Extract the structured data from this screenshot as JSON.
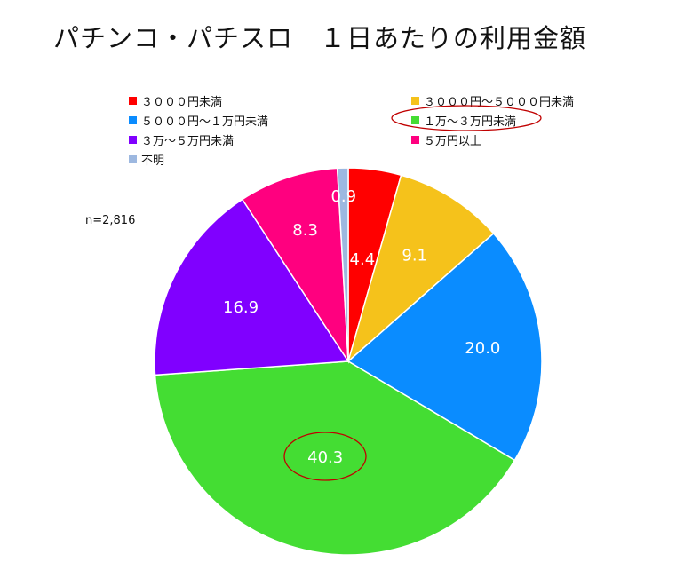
{
  "title": "パチンコ・パチスロ　１日あたりの利用金額",
  "n_note": "n=2,816",
  "chart_data": {
    "type": "pie",
    "title": "パチンコ・パチスロ　１日あたりの利用金額",
    "categories": [
      "３０００円未満",
      "３０００円～５０００円未満",
      "５０００円～１万円未満",
      "１万～３万円未満",
      "３万～５万円未満",
      "５万円以上",
      "不明"
    ],
    "values": [
      4.4,
      9.1,
      20.0,
      40.3,
      16.9,
      8.3,
      0.9
    ],
    "labels": [
      "4.4",
      "9.1",
      "20.0",
      "40.3",
      "16.9",
      "8.3",
      "0.9"
    ],
    "colors": [
      "#ff0000",
      "#f5c21b",
      "#0a8cff",
      "#44dd33",
      "#8000ff",
      "#ff007f",
      "#9db8e0"
    ],
    "legend": "top",
    "highlighted": "１万～３万円未満"
  }
}
